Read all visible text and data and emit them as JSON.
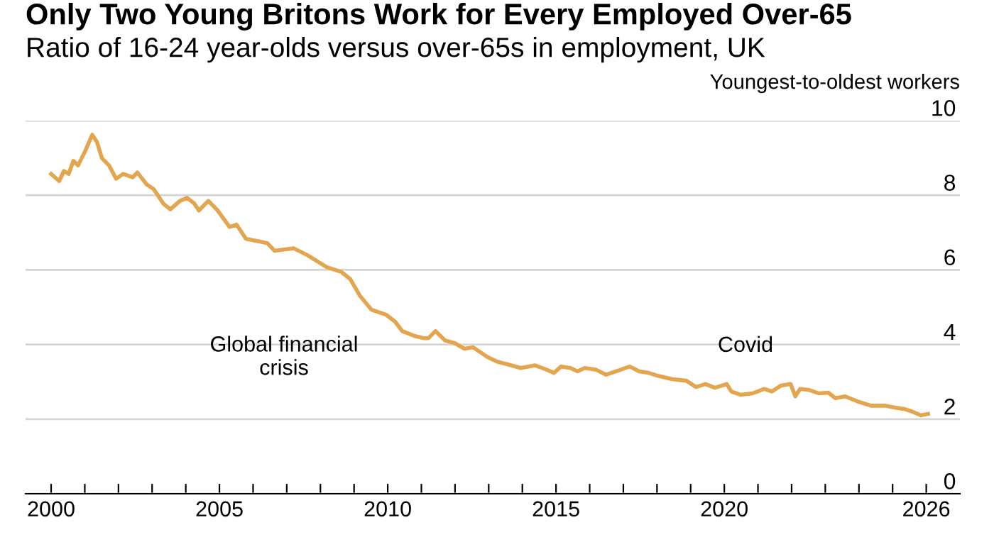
{
  "chart_data": {
    "type": "line",
    "title": "Only Two Young Britons Work for Every Employed Over-65",
    "subtitle": "Ratio of 16-24 year-olds versus over-65s in employment, UK",
    "ylabel": "Youngest-to-oldest workers",
    "x": [
      2000.0,
      2000.24,
      2000.38,
      2000.52,
      2000.66,
      2000.8,
      2001.01,
      2001.22,
      2001.36,
      2001.51,
      2001.72,
      2001.93,
      2002.14,
      2002.42,
      2002.56,
      2002.84,
      2003.05,
      2003.33,
      2003.54,
      2003.83,
      2004.04,
      2004.25,
      2004.39,
      2004.67,
      2004.95,
      2005.3,
      2005.51,
      2005.79,
      2006.15,
      2006.43,
      2006.64,
      2007.2,
      2007.62,
      2008.19,
      2008.61,
      2008.89,
      2009.17,
      2009.52,
      2009.95,
      2010.22,
      2010.43,
      2010.79,
      2011.07,
      2011.21,
      2011.42,
      2011.7,
      2011.98,
      2012.27,
      2012.54,
      2012.97,
      2013.25,
      2013.67,
      2013.95,
      2014.38,
      2014.65,
      2014.94,
      2015.15,
      2015.43,
      2015.64,
      2015.85,
      2016.2,
      2016.49,
      2016.91,
      2017.19,
      2017.47,
      2017.75,
      2018.03,
      2018.45,
      2018.87,
      2019.16,
      2019.44,
      2019.72,
      2020.07,
      2020.21,
      2020.49,
      2020.84,
      2021.19,
      2021.41,
      2021.69,
      2021.97,
      2022.11,
      2022.25,
      2022.53,
      2022.81,
      2023.09,
      2023.3,
      2023.59,
      2023.94,
      2024.36,
      2024.78,
      2025.06,
      2025.35,
      2025.56,
      2025.84,
      2026.05
    ],
    "series": [
      {
        "color": "#e3a64f",
        "values": [
          8.57,
          8.38,
          8.65,
          8.57,
          8.92,
          8.8,
          9.18,
          9.62,
          9.43,
          8.99,
          8.8,
          8.44,
          8.57,
          8.48,
          8.61,
          8.29,
          8.16,
          7.78,
          7.62,
          7.85,
          7.93,
          7.78,
          7.59,
          7.85,
          7.59,
          7.15,
          7.21,
          6.83,
          6.77,
          6.71,
          6.51,
          6.58,
          6.39,
          6.07,
          5.95,
          5.75,
          5.31,
          4.93,
          4.8,
          4.61,
          4.36,
          4.23,
          4.17,
          4.17,
          4.36,
          4.11,
          4.04,
          3.89,
          3.92,
          3.66,
          3.54,
          3.44,
          3.37,
          3.44,
          3.35,
          3.24,
          3.41,
          3.37,
          3.28,
          3.37,
          3.32,
          3.19,
          3.32,
          3.41,
          3.28,
          3.24,
          3.16,
          3.07,
          3.03,
          2.86,
          2.94,
          2.84,
          2.94,
          2.74,
          2.65,
          2.69,
          2.81,
          2.74,
          2.9,
          2.94,
          2.61,
          2.81,
          2.78,
          2.69,
          2.71,
          2.56,
          2.61,
          2.48,
          2.36,
          2.36,
          2.31,
          2.27,
          2.21,
          2.1,
          2.14
        ]
      }
    ],
    "xlim": [
      1999.24,
      2027.0
    ],
    "ylim": [
      0,
      10
    ],
    "xticks": [
      2000,
      {
        "value": 2001,
        "label": null
      },
      {
        "value": 2002,
        "label": null
      },
      {
        "value": 2003,
        "label": null
      },
      {
        "value": 2004,
        "label": null
      },
      2005,
      {
        "value": 2006,
        "label": null
      },
      {
        "value": 2007,
        "label": null
      },
      {
        "value": 2008,
        "label": null
      },
      {
        "value": 2009,
        "label": null
      },
      2010,
      {
        "value": 2011,
        "label": null
      },
      {
        "value": 2012,
        "label": null
      },
      {
        "value": 2013,
        "label": null
      },
      {
        "value": 2014,
        "label": null
      },
      2015,
      {
        "value": 2016,
        "label": null
      },
      {
        "value": 2017,
        "label": null
      },
      {
        "value": 2018,
        "label": null
      },
      {
        "value": 2019,
        "label": null
      },
      2020,
      {
        "value": 2021,
        "label": null
      },
      {
        "value": 2022,
        "label": null
      },
      {
        "value": 2023,
        "label": null
      },
      {
        "value": 2024,
        "label": null
      },
      {
        "value": 2025,
        "label": null
      },
      2026
    ],
    "yticks": [
      0,
      2,
      4,
      6,
      8,
      10
    ],
    "grid": "y",
    "marker": "none",
    "line_style": "solid",
    "annotations": [
      "Global financial\ncrisis",
      "Covid"
    ]
  }
}
